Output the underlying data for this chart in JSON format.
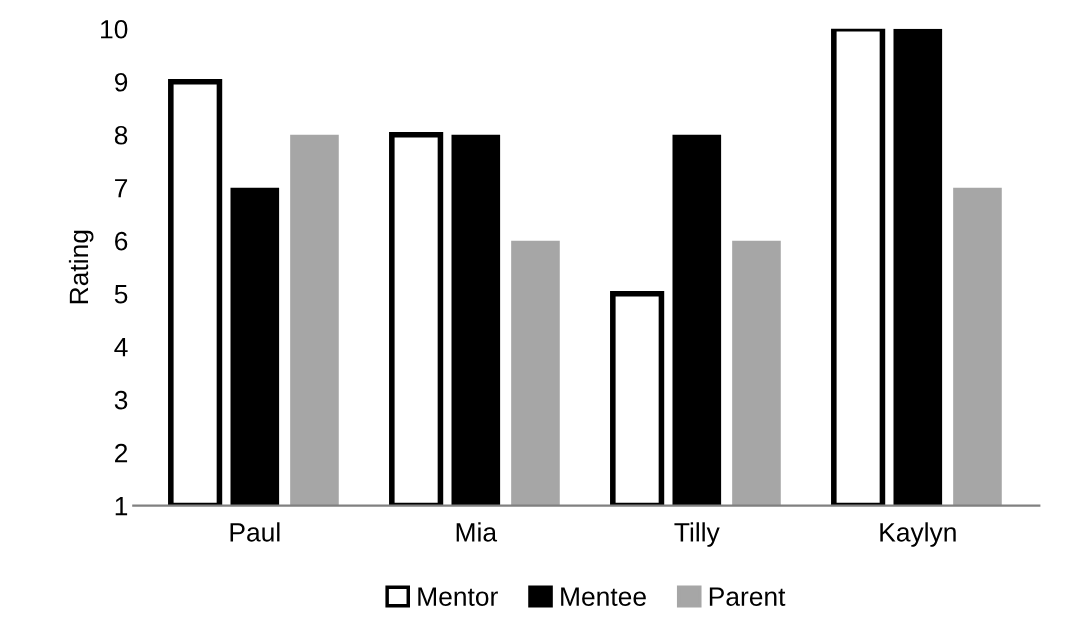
{
  "chart_data": {
    "type": "bar",
    "ylabel": "Rating",
    "categories": [
      "Paul",
      "Mia",
      "Tilly",
      "Kaylyn"
    ],
    "series": [
      {
        "name": "Mentor",
        "color": "#ffffff",
        "values": [
          9,
          8,
          5,
          10
        ]
      },
      {
        "name": "Mentee",
        "color": "#000000",
        "values": [
          7,
          8,
          8,
          10
        ]
      },
      {
        "name": "Parent",
        "color": "#a6a6a6",
        "values": [
          8,
          6,
          6,
          7
        ]
      }
    ],
    "ylim": [
      1,
      10
    ],
    "yticks": [
      1,
      2,
      3,
      4,
      5,
      6,
      7,
      8,
      9,
      10
    ],
    "grid": false,
    "legend": "bottom"
  }
}
